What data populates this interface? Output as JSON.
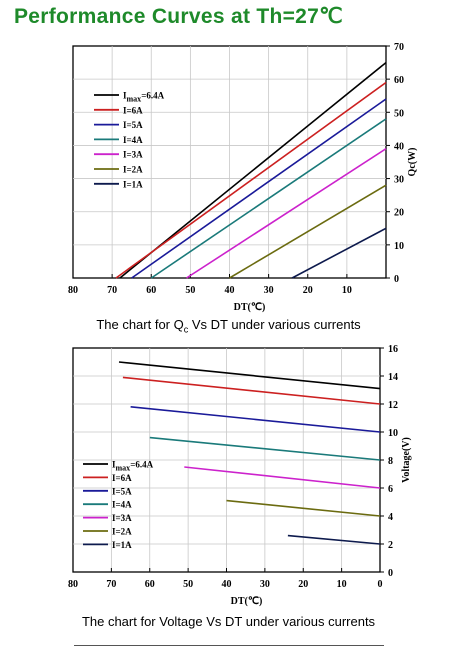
{
  "page": {
    "title": "Performance Curves at Th=27℃",
    "caption_qc_prefix": "The chart for Q",
    "caption_qc_sub": "c",
    "caption_qc_suffix": " Vs DT under various currents",
    "caption_voltage": "The chart for Voltage Vs DT under various currents"
  },
  "chart_data": [
    {
      "type": "line",
      "xlabel": "DT(℃)",
      "ylabel": "Qc(W)",
      "x_reversed": true,
      "xlim": [
        80,
        0
      ],
      "ylim": [
        0,
        70
      ],
      "x_ticks": [
        80,
        70,
        60,
        50,
        40,
        30,
        20,
        10
      ],
      "y_ticks": [
        0,
        10,
        20,
        30,
        40,
        50,
        60,
        70
      ],
      "y_axis_side": "right",
      "grid": true,
      "legend_placement": "upper-left",
      "series": [
        {
          "name": "I",
          "name_sub": "max",
          "name_suffix": "=6.4A",
          "color": "#000000",
          "x": [
            68,
            0
          ],
          "y": [
            0,
            65
          ]
        },
        {
          "name": "I=6A",
          "color": "#cc2020",
          "x": [
            69,
            0
          ],
          "y": [
            0,
            59
          ]
        },
        {
          "name": "I=5A",
          "color": "#1a1a99",
          "x": [
            65,
            0
          ],
          "y": [
            0,
            54
          ]
        },
        {
          "name": "I=4A",
          "color": "#1a7a7a",
          "x": [
            60,
            0
          ],
          "y": [
            0,
            48
          ]
        },
        {
          "name": "I=3A",
          "color": "#cc22cc",
          "x": [
            51,
            0
          ],
          "y": [
            0,
            39
          ]
        },
        {
          "name": "I=2A",
          "color": "#6b6b10",
          "x": [
            40,
            0
          ],
          "y": [
            0,
            28
          ]
        },
        {
          "name": "I=1A",
          "color": "#0d1a4d",
          "x": [
            24,
            0
          ],
          "y": [
            0,
            15
          ]
        }
      ]
    },
    {
      "type": "line",
      "xlabel": "DT(℃)",
      "ylabel": "Voltage(V)",
      "x_reversed": true,
      "xlim": [
        80,
        0
      ],
      "ylim": [
        0,
        16
      ],
      "x_ticks": [
        80,
        70,
        60,
        50,
        40,
        30,
        20,
        10,
        0
      ],
      "y_ticks": [
        0,
        2,
        4,
        6,
        8,
        10,
        12,
        14,
        16
      ],
      "y_axis_side": "right",
      "grid": true,
      "legend_placement": "lower-left",
      "series": [
        {
          "name": "I",
          "name_sub": "max",
          "name_suffix": "=6.4A",
          "color": "#000000",
          "x": [
            68,
            0
          ],
          "y": [
            15.0,
            13.1
          ]
        },
        {
          "name": "I=6A",
          "color": "#cc2020",
          "x": [
            67,
            0
          ],
          "y": [
            13.9,
            12.0
          ]
        },
        {
          "name": "I=5A",
          "color": "#1a1a99",
          "x": [
            65,
            0
          ],
          "y": [
            11.8,
            10.0
          ]
        },
        {
          "name": "I=4A",
          "color": "#1a7a7a",
          "x": [
            60,
            0
          ],
          "y": [
            9.6,
            8.0
          ]
        },
        {
          "name": "I=3A",
          "color": "#cc22cc",
          "x": [
            51,
            0
          ],
          "y": [
            7.5,
            6.0
          ]
        },
        {
          "name": "I=2A",
          "color": "#6b6b10",
          "x": [
            40,
            0
          ],
          "y": [
            5.1,
            4.0
          ]
        },
        {
          "name": "I=1A",
          "color": "#0d1a4d",
          "x": [
            24,
            0
          ],
          "y": [
            2.6,
            2.0
          ]
        }
      ]
    }
  ]
}
